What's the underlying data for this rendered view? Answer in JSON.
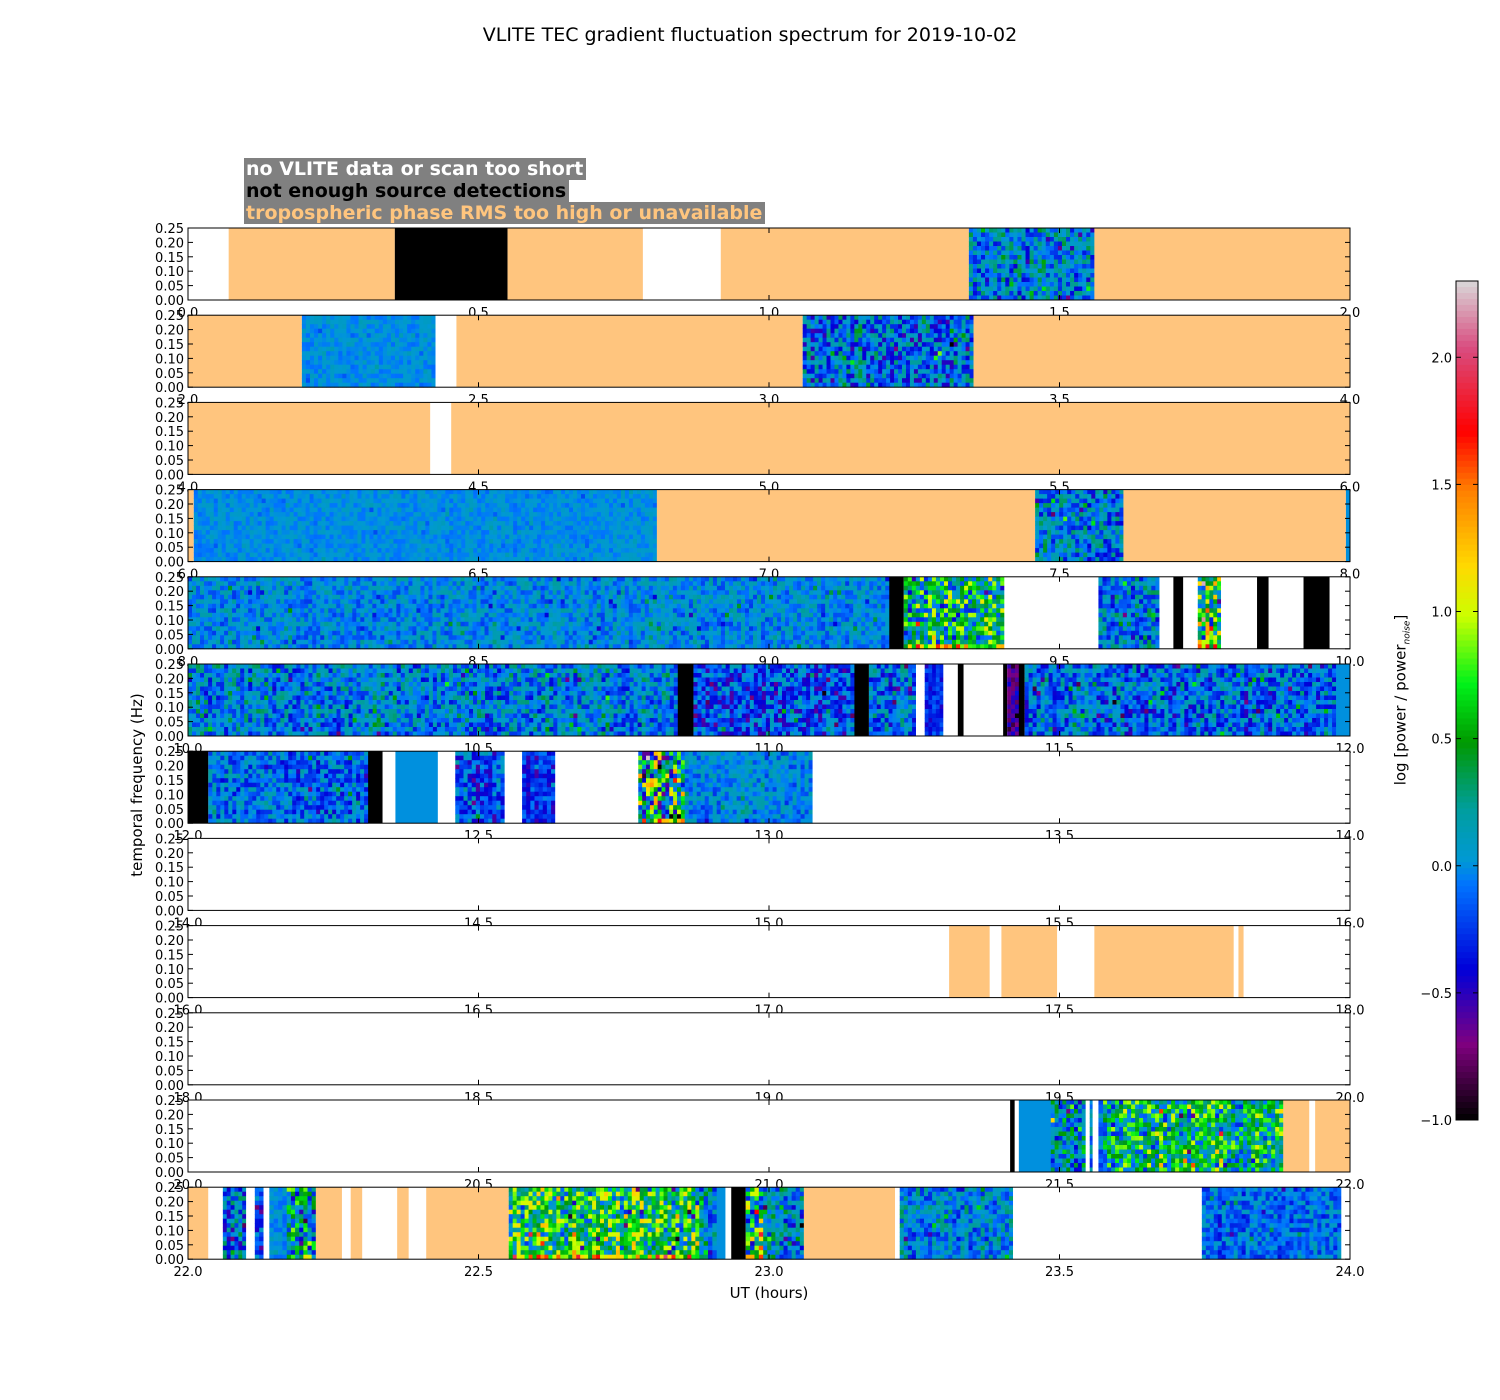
{
  "title": "VLITE TEC gradient fluctuation spectrum for 2019-10-02",
  "legend": [
    {
      "label": "no VLITE data or scan too short",
      "text_color": "#ffffff"
    },
    {
      "label": "not enough source detections",
      "text_color": "#000000"
    },
    {
      "label": "tropospheric phase RMS too high or unavailable",
      "text_color": "#ffc57e"
    }
  ],
  "chart_data": {
    "type": "heatmap",
    "xlabel": "UT (hours)",
    "ylabel": "temporal frequency (Hz)",
    "ylim": [
      0,
      0.25
    ],
    "yticks": [
      "0.00",
      "0.05",
      "0.10",
      "0.15",
      "0.20",
      "0.25"
    ],
    "colorbar": {
      "label_main": "log [power / power",
      "label_sub": "noise",
      "label_end": "]",
      "range": [
        -1.0,
        2.3
      ],
      "ticks": [
        "−1.0",
        "−0.5",
        "0.0",
        "0.5",
        "1.0",
        "1.5",
        "2.0"
      ],
      "tick_values": [
        -1.0,
        -0.5,
        0.0,
        0.5,
        1.0,
        1.5,
        2.0
      ]
    },
    "category_colors": {
      "none": "#ffffff",
      "fewdet": "#000000",
      "tropo": "#ffc57e"
    },
    "panels": [
      {
        "xlim": [
          0,
          2
        ],
        "xticks": [
          "0.0",
          "0.5",
          "1.0",
          "1.5",
          "2.0"
        ],
        "segments": [
          [
            0,
            0.07,
            "none"
          ],
          [
            0.07,
            0.356,
            "tropo"
          ],
          [
            0.356,
            0.55,
            "fewdet"
          ],
          [
            0.55,
            0.783,
            "tropo"
          ],
          [
            0.783,
            0.917,
            "none"
          ],
          [
            0.917,
            1.344,
            "tropo"
          ],
          [
            1.344,
            1.56,
            "data",
            0.0,
            0.6
          ],
          [
            1.56,
            2.0,
            "tropo"
          ]
        ]
      },
      {
        "xlim": [
          2,
          4
        ],
        "xticks": [
          "2.0",
          "2.5",
          "3.0",
          "3.5",
          "4.0"
        ],
        "segments": [
          [
            2.0,
            2.196,
            "tropo"
          ],
          [
            2.196,
            2.426,
            "data",
            0.0,
            0.15
          ],
          [
            2.426,
            2.462,
            "none"
          ],
          [
            2.462,
            3.058,
            "tropo"
          ],
          [
            3.058,
            3.352,
            "data",
            -0.1,
            0.7
          ],
          [
            3.352,
            4.0,
            "tropo"
          ]
        ]
      },
      {
        "xlim": [
          4,
          6
        ],
        "xticks": [
          "4.0",
          "4.5",
          "5.0",
          "5.5",
          "6.0"
        ],
        "segments": [
          [
            4.0,
            4.417,
            "tropo"
          ],
          [
            4.417,
            4.453,
            "none"
          ],
          [
            4.453,
            6.0,
            "tropo"
          ]
        ]
      },
      {
        "xlim": [
          6,
          8
        ],
        "xticks": [
          "6.0",
          "6.5",
          "7.0",
          "7.5",
          "8.0"
        ],
        "segments": [
          [
            6.0,
            6.01,
            "tropo"
          ],
          [
            6.01,
            6.807,
            "data",
            0.0,
            0.15
          ],
          [
            6.807,
            7.458,
            "tropo"
          ],
          [
            7.458,
            7.61,
            "data",
            0.0,
            0.6
          ],
          [
            7.61,
            7.993,
            "tropo"
          ],
          [
            7.993,
            8.0,
            "data",
            0.0,
            0.0
          ]
        ]
      },
      {
        "xlim": [
          8,
          10
        ],
        "xticks": [
          "8.0",
          "8.5",
          "9.0",
          "9.5",
          "10.0"
        ],
        "segments": [
          [
            8.0,
            9.207,
            "data",
            0.0,
            0.35
          ],
          [
            9.207,
            9.232,
            "fewdet"
          ],
          [
            9.232,
            9.405,
            "data",
            0.3,
            1.2
          ],
          [
            9.405,
            9.567,
            "none"
          ],
          [
            9.567,
            9.672,
            "data",
            0.0,
            0.6
          ],
          [
            9.672,
            9.696,
            "none"
          ],
          [
            9.696,
            9.713,
            "fewdet"
          ],
          [
            9.713,
            9.738,
            "none"
          ],
          [
            9.738,
            9.778,
            "data",
            0.6,
            1.4
          ],
          [
            9.778,
            9.84,
            "none"
          ],
          [
            9.84,
            9.86,
            "fewdet"
          ],
          [
            9.86,
            9.92,
            "none"
          ],
          [
            9.92,
            9.965,
            "fewdet"
          ],
          [
            9.965,
            10.0,
            "none"
          ]
        ]
      },
      {
        "xlim": [
          10,
          12
        ],
        "xticks": [
          "10.0",
          "10.5",
          "11.0",
          "11.5",
          "12.0"
        ],
        "segments": [
          [
            10.0,
            10.843,
            "data",
            0.0,
            0.55
          ],
          [
            10.843,
            10.87,
            "fewdet"
          ],
          [
            10.87,
            11.147,
            "data",
            -0.2,
            0.6
          ],
          [
            11.147,
            11.172,
            "fewdet"
          ],
          [
            11.172,
            11.253,
            "data",
            -0.1,
            0.6
          ],
          [
            11.253,
            11.268,
            "none"
          ],
          [
            11.268,
            11.3,
            "data",
            -0.3,
            0.3
          ],
          [
            11.3,
            11.325,
            "none"
          ],
          [
            11.325,
            11.335,
            "fewdet"
          ],
          [
            11.335,
            11.403,
            "none"
          ],
          [
            11.403,
            11.41,
            "fewdet"
          ],
          [
            11.41,
            11.43,
            "data",
            -0.6,
            0.3
          ],
          [
            11.43,
            11.44,
            "fewdet"
          ],
          [
            11.44,
            11.976,
            "data",
            -0.1,
            0.6
          ],
          [
            11.976,
            12.0,
            "data",
            0.0,
            0.0
          ]
        ]
      },
      {
        "xlim": [
          12,
          14
        ],
        "xticks": [
          "12.0",
          "12.5",
          "13.0",
          "13.5",
          "14.0"
        ],
        "segments": [
          [
            12.0,
            12.035,
            "fewdet"
          ],
          [
            12.035,
            12.31,
            "data",
            -0.1,
            0.5
          ],
          [
            12.31,
            12.335,
            "fewdet"
          ],
          [
            12.335,
            12.357,
            "none"
          ],
          [
            12.357,
            12.43,
            "data",
            0.0,
            0.0
          ],
          [
            12.43,
            12.46,
            "none"
          ],
          [
            12.46,
            12.545,
            "data",
            -0.2,
            0.55
          ],
          [
            12.545,
            12.575,
            "none"
          ],
          [
            12.575,
            12.632,
            "data",
            -0.3,
            0.4
          ],
          [
            12.632,
            12.775,
            "none"
          ],
          [
            12.775,
            12.855,
            "data",
            0.5,
            1.7
          ],
          [
            12.855,
            13.075,
            "data",
            0.0,
            0.35
          ],
          [
            13.075,
            14.0,
            "none"
          ]
        ]
      },
      {
        "xlim": [
          14,
          16
        ],
        "xticks": [
          "14.0",
          "14.5",
          "15.0",
          "15.5",
          "16.0"
        ],
        "segments": [
          [
            14.0,
            16.0,
            "none"
          ]
        ]
      },
      {
        "xlim": [
          16,
          18
        ],
        "xticks": [
          "16.0",
          "16.5",
          "17.0",
          "17.5",
          "18.0"
        ],
        "segments": [
          [
            16.0,
            17.31,
            "none"
          ],
          [
            17.31,
            17.38,
            "tropo"
          ],
          [
            17.38,
            17.4,
            "none"
          ],
          [
            17.4,
            17.496,
            "tropo"
          ],
          [
            17.496,
            17.56,
            "none"
          ],
          [
            17.56,
            17.8,
            "tropo"
          ],
          [
            17.8,
            17.808,
            "none"
          ],
          [
            17.808,
            17.817,
            "tropo"
          ],
          [
            17.817,
            18.0,
            "none"
          ]
        ]
      },
      {
        "xlim": [
          18,
          20
        ],
        "xticks": [
          "18.0",
          "18.5",
          "19.0",
          "19.5",
          "20.0"
        ],
        "segments": [
          [
            18.0,
            20.0,
            "none"
          ]
        ]
      },
      {
        "xlim": [
          20,
          22
        ],
        "xticks": [
          "20.0",
          "20.5",
          "21.0",
          "21.5",
          "22.0"
        ],
        "segments": [
          [
            20.0,
            21.415,
            "none"
          ],
          [
            21.415,
            21.423,
            "fewdet"
          ],
          [
            21.423,
            21.43,
            "none"
          ],
          [
            21.43,
            21.485,
            "data",
            0.0,
            0.0
          ],
          [
            21.485,
            21.545,
            "data",
            0.1,
            0.8
          ],
          [
            21.545,
            21.552,
            "none"
          ],
          [
            21.552,
            21.557,
            "data",
            0.0,
            0.5
          ],
          [
            21.557,
            21.567,
            "none"
          ],
          [
            21.567,
            21.575,
            "data",
            0.0,
            0.3
          ],
          [
            21.575,
            21.885,
            "data",
            0.4,
            1.0
          ],
          [
            21.885,
            21.93,
            "tropo"
          ],
          [
            21.93,
            21.94,
            "none"
          ],
          [
            21.94,
            22.0,
            "tropo"
          ]
        ]
      },
      {
        "xlim": [
          22,
          24
        ],
        "xticks": [
          "22.0",
          "22.5",
          "23.0",
          "23.5",
          "24.0"
        ],
        "segments": [
          [
            22.0,
            22.035,
            "tropo"
          ],
          [
            22.035,
            22.06,
            "none"
          ],
          [
            22.06,
            22.1,
            "data",
            0.0,
            0.8
          ],
          [
            22.1,
            22.115,
            "none"
          ],
          [
            22.115,
            22.13,
            "data",
            -0.2,
            0.6
          ],
          [
            22.13,
            22.14,
            "none"
          ],
          [
            22.14,
            22.17,
            "data",
            0.0,
            0.2
          ],
          [
            22.17,
            22.22,
            "data",
            0.2,
            1.2
          ],
          [
            22.22,
            22.265,
            "tropo"
          ],
          [
            22.265,
            22.28,
            "none"
          ],
          [
            22.28,
            22.3,
            "tropo"
          ],
          [
            22.3,
            22.36,
            "none"
          ],
          [
            22.36,
            22.38,
            "tropo"
          ],
          [
            22.38,
            22.41,
            "none"
          ],
          [
            22.41,
            22.552,
            "tropo"
          ],
          [
            22.552,
            22.88,
            "data",
            0.5,
            1.1
          ],
          [
            22.88,
            22.91,
            "data",
            0.1,
            0.8
          ],
          [
            22.91,
            22.925,
            "data",
            0.0,
            0.0
          ],
          [
            22.925,
            22.935,
            "none"
          ],
          [
            22.935,
            22.96,
            "fewdet"
          ],
          [
            22.96,
            22.99,
            "data",
            0.3,
            1.4
          ],
          [
            22.99,
            23.06,
            "data",
            0.0,
            0.7
          ],
          [
            23.06,
            23.217,
            "tropo"
          ],
          [
            23.217,
            23.225,
            "none"
          ],
          [
            23.225,
            23.42,
            "data",
            0.0,
            0.5
          ],
          [
            23.42,
            23.745,
            "none"
          ],
          [
            23.745,
            23.985,
            "data",
            -0.1,
            0.4
          ],
          [
            23.985,
            24.0,
            "none"
          ]
        ]
      }
    ]
  }
}
